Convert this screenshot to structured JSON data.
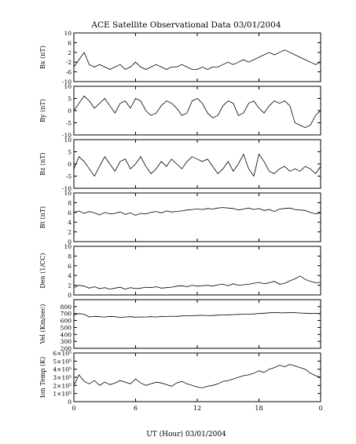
{
  "chart_data": {
    "type": "line",
    "title": "ACE Satellite Observational Data   03/01/2004",
    "xlabel": "UT (Hour)   03/01/2004",
    "x_ticks": [
      "0",
      "6",
      "12",
      "18",
      "0"
    ],
    "xlim": [
      0,
      24
    ],
    "grid": false,
    "panels": [
      {
        "label": "Bx (nT)",
        "ylim": [
          -10,
          10
        ],
        "ytick_values": [
          10,
          6,
          2,
          -2,
          -6,
          -10
        ],
        "ytick_labels": [
          "10",
          "6",
          "2",
          "-2",
          "-6",
          "-10"
        ],
        "x": [
          0,
          0.5,
          1,
          1.5,
          2,
          2.5,
          3,
          3.5,
          4,
          4.5,
          5,
          5.5,
          6,
          6.5,
          7,
          7.5,
          8,
          8.5,
          9,
          9.5,
          10,
          10.5,
          11,
          11.5,
          12,
          12.5,
          13,
          13.5,
          14,
          14.5,
          15,
          15.5,
          16,
          16.5,
          17,
          17.5,
          18,
          18.5,
          19,
          19.5,
          20,
          20.5,
          21,
          21.5,
          22,
          22.5,
          23,
          23.5,
          24
        ],
        "values": [
          -4,
          -1,
          2,
          -3,
          -4,
          -3,
          -4,
          -5,
          -4,
          -3,
          -5,
          -4,
          -2,
          -4,
          -5,
          -4,
          -3,
          -4,
          -5,
          -4,
          -4,
          -3,
          -4,
          -5,
          -5,
          -4,
          -5,
          -4,
          -4,
          -3,
          -2,
          -3,
          -2,
          -1,
          -2,
          -1,
          0,
          1,
          2,
          1,
          2,
          3,
          2,
          1,
          0,
          -1,
          -2,
          -3,
          -2
        ]
      },
      {
        "label": "By (nT)",
        "ylim": [
          -10,
          10
        ],
        "ytick_values": [
          10,
          5,
          0,
          -5,
          -10
        ],
        "ytick_labels": [
          "10",
          "5",
          "0",
          "-5",
          "-10"
        ],
        "x": [
          0,
          0.5,
          1,
          1.5,
          2,
          2.5,
          3,
          3.5,
          4,
          4.5,
          5,
          5.5,
          6,
          6.5,
          7,
          7.5,
          8,
          8.5,
          9,
          9.5,
          10,
          10.5,
          11,
          11.5,
          12,
          12.5,
          13,
          13.5,
          14,
          14.5,
          15,
          15.5,
          16,
          16.5,
          17,
          17.5,
          18,
          18.5,
          19,
          19.5,
          20,
          20.5,
          21,
          21.5,
          22,
          22.5,
          23,
          23.5,
          24
        ],
        "values": [
          0,
          3,
          6,
          4,
          1,
          3,
          5,
          2,
          -1,
          3,
          4,
          1,
          5,
          4,
          0,
          -2,
          -1,
          2,
          4,
          3,
          1,
          -2,
          -1,
          4,
          5,
          3,
          -1,
          -3,
          -2,
          2,
          4,
          3,
          -2,
          -1,
          3,
          4,
          1,
          -1,
          2,
          4,
          3,
          4,
          2,
          -5,
          -6,
          -7,
          -6,
          -2,
          0
        ]
      },
      {
        "label": "Bz (nT)",
        "ylim": [
          -10,
          10
        ],
        "ytick_values": [
          10,
          5,
          0,
          -5,
          -10
        ],
        "ytick_labels": [
          "10",
          "5",
          "0",
          "-5",
          "-10"
        ],
        "x": [
          0,
          0.5,
          1,
          1.5,
          2,
          2.5,
          3,
          3.5,
          4,
          4.5,
          5,
          5.5,
          6,
          6.5,
          7,
          7.5,
          8,
          8.5,
          9,
          9.5,
          10,
          10.5,
          11,
          11.5,
          12,
          12.5,
          13,
          13.5,
          14,
          14.5,
          15,
          15.5,
          16,
          16.5,
          17,
          17.5,
          18,
          18.5,
          19,
          19.5,
          20,
          20.5,
          21,
          21.5,
          22,
          22.5,
          23,
          23.5,
          24
        ],
        "values": [
          -2,
          3,
          1,
          -2,
          -5,
          -1,
          3,
          0,
          -3,
          1,
          2,
          -2,
          0,
          3,
          -1,
          -4,
          -2,
          1,
          -1,
          2,
          0,
          -2,
          1,
          3,
          2,
          1,
          2,
          -1,
          -4,
          -2,
          1,
          -3,
          0,
          4,
          -2,
          -5,
          4,
          1,
          -3,
          -4,
          -2,
          -1,
          -3,
          -2,
          -3,
          -1,
          -2,
          -4,
          -1
        ]
      },
      {
        "label": "Bt (nT)",
        "ylim": [
          0,
          10
        ],
        "ytick_values": [
          10,
          8,
          6,
          4,
          2,
          0
        ],
        "ytick_labels": [
          "10",
          "8",
          "6",
          "4",
          "2",
          "0"
        ],
        "x": [
          0,
          0.5,
          1,
          1.5,
          2,
          2.5,
          3,
          3.5,
          4,
          4.5,
          5,
          5.5,
          6,
          6.5,
          7,
          7.5,
          8,
          8.5,
          9,
          9.5,
          10,
          10.5,
          11,
          11.5,
          12,
          12.5,
          13,
          13.5,
          14,
          14.5,
          15,
          15.5,
          16,
          16.5,
          17,
          17.5,
          18,
          18.5,
          19,
          19.5,
          20,
          20.5,
          21,
          21.5,
          22,
          22.5,
          23,
          23.5,
          24
        ],
        "values": [
          6,
          6.3,
          5.8,
          6.2,
          5.9,
          5.5,
          6,
          5.7,
          5.8,
          6.1,
          5.6,
          5.9,
          5.4,
          5.8,
          5.7,
          6,
          6.2,
          5.9,
          6.3,
          6.1,
          6.2,
          6.3,
          6.5,
          6.6,
          6.7,
          6.6,
          6.8,
          6.7,
          6.9,
          7,
          6.9,
          6.8,
          6.5,
          6.7,
          6.9,
          6.6,
          6.8,
          6.4,
          6.6,
          6.2,
          6.7,
          6.8,
          6.9,
          6.6,
          6.5,
          6.4,
          6,
          5.7,
          5.9
        ]
      },
      {
        "label": "Den (1/CC)",
        "ylim": [
          0,
          10
        ],
        "ytick_values": [
          10,
          8,
          6,
          4,
          2,
          0
        ],
        "ytick_labels": [
          "10",
          "8",
          "6",
          "4",
          "2",
          "0"
        ],
        "x": [
          0,
          0.5,
          1,
          1.5,
          2,
          2.5,
          3,
          3.5,
          4,
          4.5,
          5,
          5.5,
          6,
          6.5,
          7,
          7.5,
          8,
          8.5,
          9,
          9.5,
          10,
          10.5,
          11,
          11.5,
          12,
          12.5,
          13,
          13.5,
          14,
          14.5,
          15,
          15.5,
          16,
          16.5,
          17,
          17.5,
          18,
          18.5,
          19,
          19.5,
          20,
          20.5,
          21,
          21.5,
          22,
          22.5,
          23,
          23.5,
          24
        ],
        "values": [
          1.5,
          2,
          1.8,
          1.4,
          1.7,
          1.3,
          1.5,
          1.2,
          1.4,
          1.6,
          1.2,
          1.5,
          1.3,
          1.4,
          1.6,
          1.5,
          1.7,
          1.4,
          1.5,
          1.6,
          1.8,
          1.9,
          1.7,
          2,
          1.8,
          1.9,
          2,
          1.8,
          2.1,
          2.2,
          1.9,
          2.3,
          2,
          2.1,
          2.2,
          2.4,
          2.6,
          2.3,
          2.5,
          2.8,
          2.2,
          2.4,
          2.9,
          3.3,
          3.9,
          3.2,
          2.8,
          2.5,
          2.6
        ]
      },
      {
        "label": "Vel (Km/sec)",
        "ylim": [
          200,
          900
        ],
        "ytick_values": [
          800,
          700,
          600,
          500,
          400,
          300,
          200
        ],
        "ytick_labels": [
          "800",
          "700",
          "600",
          "500",
          "400",
          "300",
          "200"
        ],
        "x": [
          0,
          0.5,
          1,
          1.5,
          2,
          2.5,
          3,
          3.5,
          4,
          4.5,
          5,
          5.5,
          6,
          6.5,
          7,
          7.5,
          8,
          8.5,
          9,
          9.5,
          10,
          10.5,
          11,
          11.5,
          12,
          12.5,
          13,
          13.5,
          14,
          14.5,
          15,
          15.5,
          16,
          16.5,
          17,
          17.5,
          18,
          18.5,
          19,
          19.5,
          20,
          20.5,
          21,
          21.5,
          22,
          22.5,
          23,
          23.5,
          24
        ],
        "values": [
          680,
          700,
          690,
          650,
          660,
          655,
          650,
          660,
          655,
          645,
          650,
          655,
          648,
          652,
          650,
          655,
          650,
          660,
          658,
          662,
          660,
          665,
          668,
          670,
          672,
          675,
          670,
          672,
          678,
          680,
          682,
          685,
          688,
          690,
          692,
          695,
          700,
          705,
          710,
          715,
          712,
          710,
          715,
          712,
          708,
          705,
          700,
          702,
          698
        ]
      },
      {
        "label": "Ion Temp (K)",
        "ylim": [
          0,
          600000.0
        ],
        "ytick_values": [
          600000,
          500000,
          400000,
          300000,
          200000,
          100000,
          0
        ],
        "ytick_labels": [
          "6×10⁵",
          "5×10⁵",
          "4×10⁵",
          "3×10⁵",
          "2×10⁵",
          "1×10⁵",
          "0"
        ],
        "x": [
          0,
          0.5,
          1,
          1.5,
          2,
          2.5,
          3,
          3.5,
          4,
          4.5,
          5,
          5.5,
          6,
          6.5,
          7,
          7.5,
          8,
          8.5,
          9,
          9.5,
          10,
          10.5,
          11,
          11.5,
          12,
          12.5,
          13,
          13.5,
          14,
          14.5,
          15,
          15.5,
          16,
          16.5,
          17,
          17.5,
          18,
          18.5,
          19,
          19.5,
          20,
          20.5,
          21,
          21.5,
          22,
          22.5,
          23,
          23.5,
          24
        ],
        "values": [
          200000,
          330000,
          250000,
          220000,
          260000,
          200000,
          240000,
          210000,
          230000,
          260000,
          240000,
          220000,
          280000,
          230000,
          200000,
          220000,
          240000,
          230000,
          210000,
          190000,
          230000,
          250000,
          220000,
          200000,
          180000,
          170000,
          190000,
          200000,
          220000,
          250000,
          260000,
          280000,
          300000,
          320000,
          330000,
          350000,
          380000,
          360000,
          400000,
          420000,
          450000,
          430000,
          460000,
          440000,
          420000,
          400000,
          350000,
          320000,
          300000
        ]
      }
    ]
  }
}
